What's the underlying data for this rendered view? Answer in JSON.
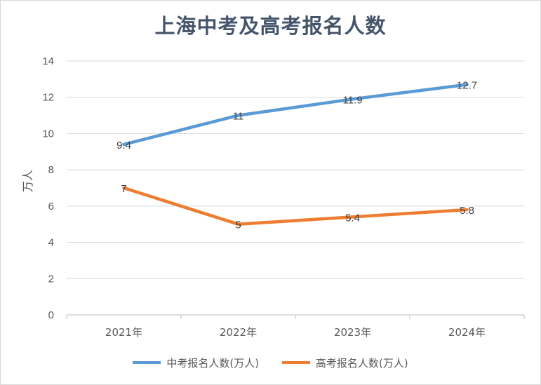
{
  "chart_data": {
    "type": "line",
    "title": "上海中考及高考报名人数",
    "xlabel": "",
    "ylabel": "万人",
    "categories": [
      "2021年",
      "2022年",
      "2023年",
      "2024年"
    ],
    "ylim": [
      0,
      14
    ],
    "yticks": [
      0,
      2,
      4,
      6,
      8,
      10,
      12,
      14
    ],
    "grid": true,
    "legend_position": "bottom",
    "series": [
      {
        "name": "中考报名人数(万人)",
        "values": [
          9.4,
          11,
          11.9,
          12.7
        ],
        "labels": [
          "9.4",
          "11",
          "11.9",
          "12.7"
        ],
        "color": "#5b9bd5"
      },
      {
        "name": "高考报名人数(万人)",
        "values": [
          7,
          5,
          5.4,
          5.8
        ],
        "labels": [
          "7",
          "5",
          "5.4",
          "5.8"
        ],
        "color": "#ed7d31"
      }
    ]
  }
}
